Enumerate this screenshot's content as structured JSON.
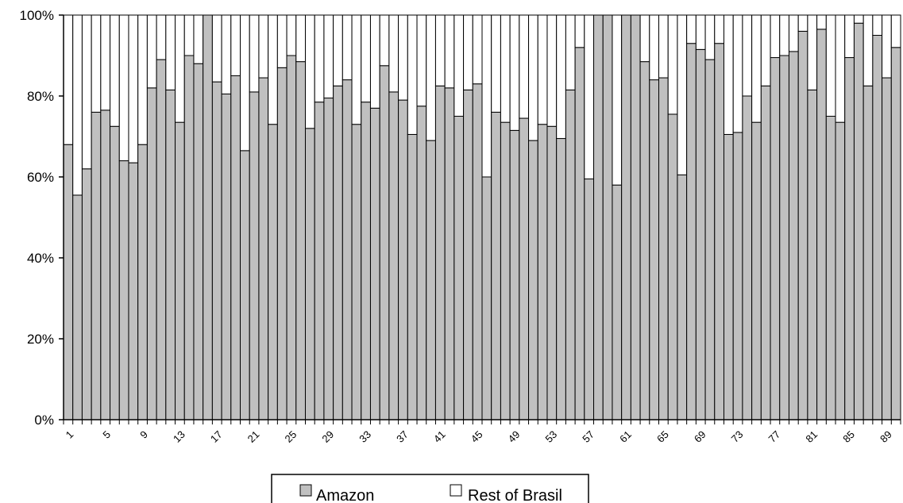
{
  "chart_data": {
    "type": "bar",
    "stacked": true,
    "percent_stacked": true,
    "categories": [
      "1",
      "2",
      "3",
      "4",
      "5",
      "6",
      "7",
      "8",
      "9",
      "10",
      "11",
      "12",
      "13",
      "14",
      "15",
      "16",
      "17",
      "18",
      "19",
      "20",
      "21",
      "22",
      "23",
      "24",
      "25",
      "26",
      "27",
      "28",
      "29",
      "30",
      "31",
      "32",
      "33",
      "34",
      "35",
      "36",
      "37",
      "38",
      "39",
      "40",
      "41",
      "42",
      "43",
      "44",
      "45",
      "46",
      "47",
      "48",
      "49",
      "50",
      "51",
      "52",
      "53",
      "54",
      "55",
      "56",
      "57",
      "58",
      "59",
      "60",
      "61",
      "62",
      "63",
      "64",
      "65",
      "66",
      "67",
      "68",
      "69",
      "70",
      "71",
      "72",
      "73",
      "74",
      "75",
      "76",
      "77",
      "78",
      "79",
      "80",
      "81",
      "82",
      "83",
      "84",
      "85",
      "86",
      "87",
      "88",
      "89",
      "90"
    ],
    "tick_labels_shown": [
      "1",
      "5",
      "9",
      "13",
      "17",
      "21",
      "25",
      "29",
      "33",
      "37",
      "41",
      "45",
      "49",
      "53",
      "57",
      "61",
      "65",
      "69",
      "73",
      "77",
      "81",
      "85",
      "89"
    ],
    "yticks": [
      "0%",
      "20%",
      "40%",
      "60%",
      "80%",
      "100%"
    ],
    "ylim": [
      0,
      100
    ],
    "title": "",
    "xlabel": "",
    "ylabel": "",
    "grid": false,
    "legend_position": "bottom",
    "series": [
      {
        "name": "Amazon",
        "color": "#c0c0c0",
        "values": [
          68,
          55.5,
          62,
          76,
          76.5,
          72.5,
          64,
          63.5,
          68,
          82,
          89,
          81.5,
          73.5,
          90,
          88,
          100,
          83.5,
          80.5,
          85,
          66.5,
          81,
          84.5,
          73,
          87,
          90,
          88.5,
          72,
          78.5,
          79.5,
          82.5,
          84,
          73,
          78.5,
          77,
          87.5,
          81,
          79,
          70.5,
          77.5,
          69,
          82.5,
          82,
          75,
          81.5,
          83,
          60,
          76,
          73.5,
          71.5,
          74.5,
          69,
          73,
          72.5,
          69.5,
          81.5,
          92,
          59.5,
          100,
          100,
          58,
          100,
          100,
          88.5,
          84,
          84.5,
          75.5,
          60.5,
          93,
          91.5,
          89,
          93,
          70.5,
          71,
          80,
          73.5,
          82.5,
          89.5,
          90,
          91,
          96,
          81.5,
          96.5,
          75,
          73.5,
          89.5,
          98,
          82.5,
          95,
          84.5,
          92
        ]
      },
      {
        "name": "Rest of Brasil",
        "color": "#ffffff",
        "values": [
          32,
          44.5,
          38,
          24,
          23.5,
          27.5,
          36,
          36.5,
          32,
          18,
          11,
          18.5,
          26.5,
          10,
          12,
          0,
          16.5,
          19.5,
          15,
          33.5,
          19,
          15.5,
          27,
          13,
          10,
          11.5,
          28,
          21.5,
          20.5,
          17.5,
          16,
          27,
          21.5,
          23,
          12.5,
          19,
          21,
          29.5,
          22.5,
          31,
          17.5,
          18,
          25,
          18.5,
          17,
          40,
          24,
          26.5,
          28.5,
          25.5,
          31,
          27,
          27.5,
          30.5,
          18.5,
          8,
          40.5,
          0,
          0,
          42,
          0,
          0,
          11.5,
          16,
          15.5,
          24.5,
          39.5,
          7,
          8.5,
          11,
          7,
          29.5,
          29,
          20,
          26.5,
          17.5,
          10.5,
          10,
          9,
          4,
          18.5,
          3.5,
          25,
          26.5,
          10.5,
          2,
          17.5,
          5,
          15.5,
          8
        ]
      }
    ]
  }
}
